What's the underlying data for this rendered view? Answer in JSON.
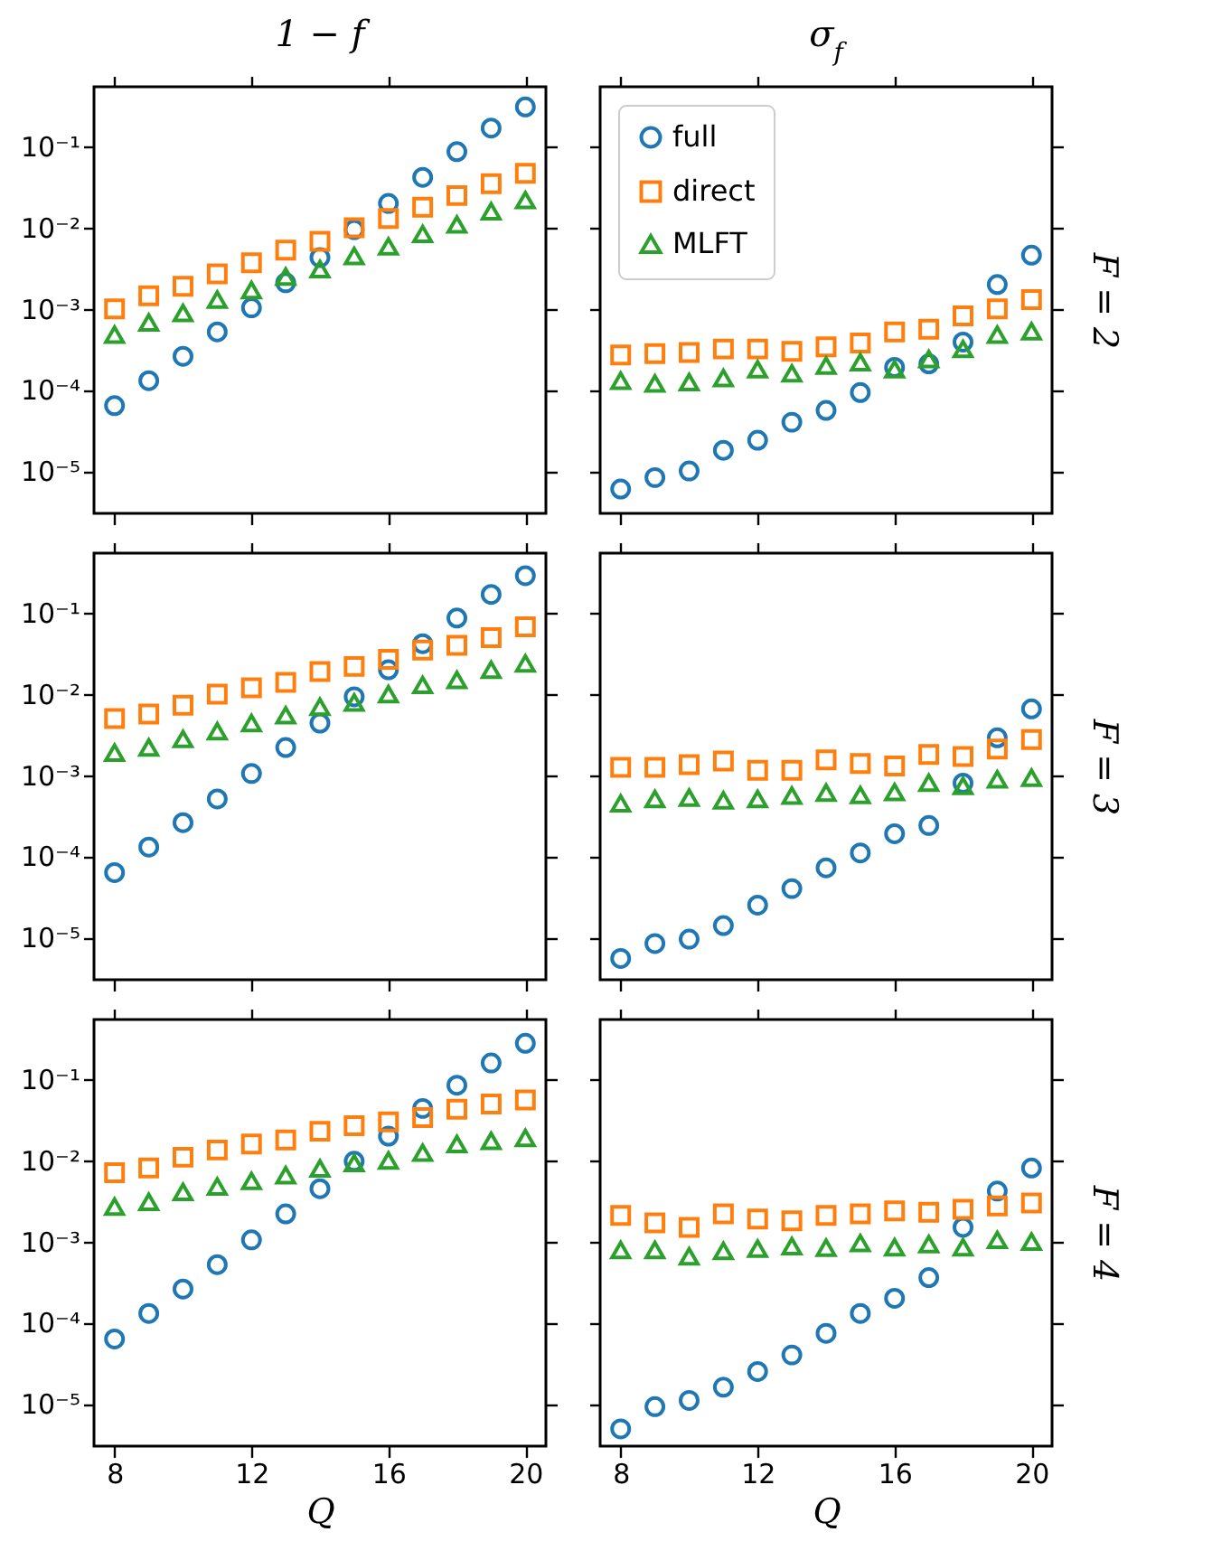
{
  "chart_data": [
    {
      "type": "scatter",
      "title": "1 − f",
      "log": "y",
      "grid": false,
      "legend": false,
      "tick_labels": "y",
      "xlim": [
        7.4,
        20.6
      ],
      "xticks": [
        8,
        12,
        16,
        20
      ],
      "ylim": [
        3e-06,
        0.55
      ],
      "yticks": [
        {
          "value": 1e-05,
          "label": "10⁻⁵"
        },
        {
          "value": 0.0001,
          "label": "10⁻⁴"
        },
        {
          "value": 0.001,
          "label": "10⁻³"
        },
        {
          "value": 0.01,
          "label": "10⁻²"
        },
        {
          "value": 0.1,
          "label": "10⁻¹"
        }
      ],
      "x": [
        8,
        9,
        10,
        11,
        12,
        13,
        14,
        15,
        16,
        17,
        18,
        19,
        20
      ],
      "series": [
        {
          "color": "#1f77b4",
          "marker": "circle",
          "values": [
            6.4e-05,
            0.00013,
            0.00026,
            0.00052,
            0.00103,
            0.0021,
            0.0043,
            0.0095,
            0.02,
            0.042,
            0.087,
            0.17,
            0.31
          ]
        },
        {
          "color": "#ff7f0e",
          "marker": "square",
          "values": [
            0.001,
            0.00145,
            0.0019,
            0.0027,
            0.0037,
            0.0053,
            0.0068,
            0.01,
            0.013,
            0.018,
            0.025,
            0.035,
            0.047
          ]
        },
        {
          "color": "#2ca02c",
          "marker": "triangle",
          "values": [
            0.00048,
            0.00068,
            0.00089,
            0.0013,
            0.0017,
            0.0025,
            0.0031,
            0.0045,
            0.0059,
            0.0084,
            0.011,
            0.016,
            0.022
          ]
        }
      ]
    },
    {
      "type": "scatter",
      "title": "σ$_{f}$",
      "y2label": "F = 2",
      "log": "y",
      "grid": false,
      "legend": "top left",
      "tick_labels": false,
      "xlim": [
        7.4,
        20.6
      ],
      "xticks": [
        8,
        12,
        16,
        20
      ],
      "ylim": [
        3e-06,
        0.55
      ],
      "yticks": [
        {
          "value": 1e-05,
          "label": null
        },
        {
          "value": 0.0001,
          "label": null
        },
        {
          "value": 0.001,
          "label": null
        },
        {
          "value": 0.01,
          "label": null
        },
        {
          "value": 0.1,
          "label": null
        }
      ],
      "x": [
        8,
        9,
        10,
        11,
        12,
        13,
        14,
        15,
        16,
        17,
        18,
        19,
        20
      ],
      "series": [
        {
          "name": "full",
          "color": "#1f77b4",
          "marker": "circle",
          "values": [
            6e-06,
            8.3e-06,
            1e-05,
            1.8e-05,
            2.4e-05,
            4e-05,
            5.6e-05,
            9.3e-05,
            0.00019,
            0.00021,
            0.00039,
            0.002,
            0.0046
          ]
        },
        {
          "name": "direct",
          "color": "#ff7f0e",
          "marker": "square",
          "values": [
            0.00027,
            0.00028,
            0.00029,
            0.00032,
            0.00032,
            0.0003,
            0.00034,
            0.00038,
            0.00052,
            0.00056,
            0.00082,
            0.001,
            0.0013
          ]
        },
        {
          "name": "MLFT",
          "color": "#2ca02c",
          "marker": "triangle",
          "values": [
            0.00013,
            0.00012,
            0.000125,
            0.00014,
            0.00018,
            0.00016,
            0.0002,
            0.00022,
            0.00018,
            0.00024,
            0.00032,
            0.00048,
            0.00053
          ]
        }
      ]
    },
    {
      "type": "scatter",
      "log": "y",
      "grid": false,
      "legend": false,
      "tick_labels": "y",
      "xlim": [
        7.4,
        20.6
      ],
      "xticks": [
        8,
        12,
        16,
        20
      ],
      "ylim": [
        3e-06,
        0.55
      ],
      "yticks": [
        {
          "value": 1e-05,
          "label": "10⁻⁵"
        },
        {
          "value": 0.0001,
          "label": "10⁻⁴"
        },
        {
          "value": 0.001,
          "label": "10⁻³"
        },
        {
          "value": 0.01,
          "label": "10⁻²"
        },
        {
          "value": 0.1,
          "label": "10⁻¹"
        }
      ],
      "x": [
        8,
        9,
        10,
        11,
        12,
        13,
        14,
        15,
        16,
        17,
        18,
        19,
        20
      ],
      "series": [
        {
          "color": "#1f77b4",
          "marker": "circle",
          "values": [
            6.3e-05,
            0.00013,
            0.00026,
            0.00051,
            0.00105,
            0.0022,
            0.0044,
            0.0093,
            0.02,
            0.042,
            0.087,
            0.17,
            0.29
          ]
        },
        {
          "color": "#ff7f0e",
          "marker": "square",
          "values": [
            0.005,
            0.0057,
            0.0073,
            0.01,
            0.012,
            0.014,
            0.019,
            0.022,
            0.027,
            0.035,
            0.04,
            0.05,
            0.068
          ]
        },
        {
          "color": "#2ca02c",
          "marker": "triangle",
          "values": [
            0.0019,
            0.0022,
            0.0028,
            0.0035,
            0.0044,
            0.0055,
            0.007,
            0.0079,
            0.01,
            0.013,
            0.015,
            0.02,
            0.024
          ]
        }
      ]
    },
    {
      "type": "scatter",
      "y2label": "F = 3",
      "log": "y",
      "grid": false,
      "legend": false,
      "tick_labels": false,
      "xlim": [
        7.4,
        20.6
      ],
      "xticks": [
        8,
        12,
        16,
        20
      ],
      "ylim": [
        3e-06,
        0.55
      ],
      "yticks": [
        {
          "value": 1e-05,
          "label": null
        },
        {
          "value": 0.0001,
          "label": null
        },
        {
          "value": 0.001,
          "label": null
        },
        {
          "value": 0.01,
          "label": null
        },
        {
          "value": 0.1,
          "label": null
        }
      ],
      "x": [
        8,
        9,
        10,
        11,
        12,
        13,
        14,
        15,
        16,
        17,
        18,
        19,
        20
      ],
      "series": [
        {
          "color": "#1f77b4",
          "marker": "circle",
          "values": [
            5.5e-06,
            8.4e-06,
            9.5e-06,
            1.4e-05,
            2.5e-05,
            4e-05,
            7.2e-05,
            0.00011,
            0.00019,
            0.00024,
            0.0008,
            0.0029,
            0.0066
          ]
        },
        {
          "color": "#ff7f0e",
          "marker": "square",
          "values": [
            0.00125,
            0.00125,
            0.00135,
            0.0015,
            0.00115,
            0.00115,
            0.00155,
            0.0014,
            0.0013,
            0.0018,
            0.0017,
            0.0021,
            0.00275
          ]
        },
        {
          "color": "#2ca02c",
          "marker": "triangle",
          "values": [
            0.00045,
            0.00051,
            0.00053,
            0.00049,
            0.00051,
            0.00056,
            0.00061,
            0.00057,
            0.00062,
            0.00081,
            0.00074,
            0.00089,
            0.00093
          ]
        }
      ]
    },
    {
      "type": "scatter",
      "xlabel": "Q",
      "log": "y",
      "grid": false,
      "legend": false,
      "xlim": [
        7.4,
        20.6
      ],
      "xticks": [
        8,
        12,
        16,
        20
      ],
      "ylim": [
        3e-06,
        0.55
      ],
      "yticks": [
        {
          "value": 1e-05,
          "label": "10⁻⁵"
        },
        {
          "value": 0.0001,
          "label": "10⁻⁴"
        },
        {
          "value": 0.001,
          "label": "10⁻³"
        },
        {
          "value": 0.01,
          "label": "10⁻²"
        },
        {
          "value": 0.1,
          "label": "10⁻¹"
        }
      ],
      "x": [
        8,
        9,
        10,
        11,
        12,
        13,
        14,
        15,
        16,
        17,
        18,
        19,
        20
      ],
      "series": [
        {
          "color": "#1f77b4",
          "marker": "circle",
          "values": [
            6.3e-05,
            0.00013,
            0.00026,
            0.00052,
            0.00105,
            0.0022,
            0.0045,
            0.0098,
            0.02,
            0.044,
            0.085,
            0.16,
            0.28
          ]
        },
        {
          "color": "#ff7f0e",
          "marker": "square",
          "values": [
            0.0071,
            0.0081,
            0.011,
            0.0135,
            0.016,
            0.018,
            0.023,
            0.027,
            0.03,
            0.034,
            0.043,
            0.05,
            0.056
          ]
        },
        {
          "color": "#2ca02c",
          "marker": "triangle",
          "values": [
            0.0027,
            0.0031,
            0.0041,
            0.0048,
            0.0056,
            0.0066,
            0.008,
            0.0093,
            0.01,
            0.0125,
            0.016,
            0.0175,
            0.019
          ]
        }
      ]
    },
    {
      "type": "scatter",
      "xlabel": "Q",
      "y2label": "F = 4",
      "log": "y",
      "grid": false,
      "legend": false,
      "tick_labels": "x",
      "xlim": [
        7.4,
        20.6
      ],
      "xticks": [
        8,
        12,
        16,
        20
      ],
      "ylim": [
        3e-06,
        0.55
      ],
      "yticks": [
        {
          "value": 1e-05,
          "label": null
        },
        {
          "value": 0.0001,
          "label": null
        },
        {
          "value": 0.001,
          "label": null
        },
        {
          "value": 0.01,
          "label": null
        },
        {
          "value": 0.1,
          "label": null
        }
      ],
      "x": [
        8,
        9,
        10,
        11,
        12,
        13,
        14,
        15,
        16,
        17,
        18,
        19,
        20
      ],
      "series": [
        {
          "color": "#1f77b4",
          "marker": "circle",
          "values": [
            4.9e-06,
            9.2e-06,
            1.1e-05,
            1.6e-05,
            2.5e-05,
            4e-05,
            7.4e-05,
            0.00013,
            0.0002,
            0.00036,
            0.0015,
            0.0042,
            0.0081
          ]
        },
        {
          "color": "#ff7f0e",
          "marker": "square",
          "values": [
            0.0021,
            0.0017,
            0.0015,
            0.0022,
            0.0019,
            0.0018,
            0.0021,
            0.0022,
            0.0024,
            0.0023,
            0.0025,
            0.00275,
            0.003
          ]
        },
        {
          "color": "#2ca02c",
          "marker": "triangle",
          "values": [
            0.00079,
            0.00079,
            0.00066,
            0.00077,
            0.00082,
            0.00088,
            0.00084,
            0.00096,
            0.00085,
            0.00093,
            0.00085,
            0.00105,
            0.001
          ]
        }
      ]
    }
  ]
}
